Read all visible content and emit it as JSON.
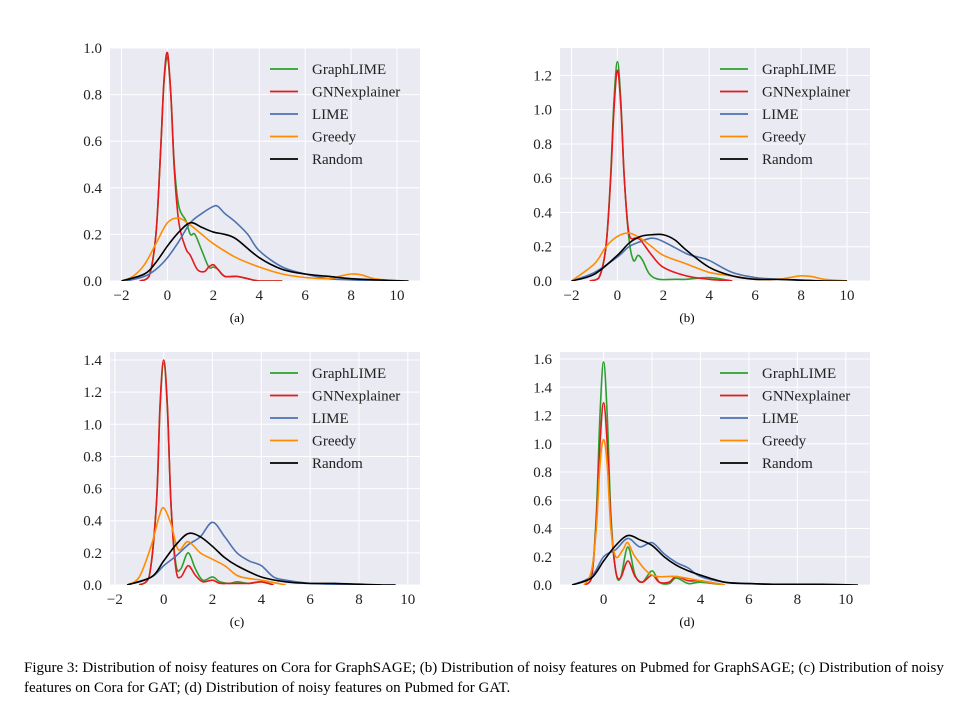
{
  "figure": {
    "caption": "Figure 3: Distribution of noisy features on Cora for GraphSAGE; (b) Distribution of noisy features on Pubmed for GraphSAGE; (c) Distribution of noisy features on Cora for GAT; (d) Distribution of noisy features on Pubmed for GAT."
  },
  "colors": {
    "GraphLIME": "#2ca02c",
    "GNNexplainer": "#e41a1c",
    "LIME": "#4c72b0",
    "Greedy": "#ff8c00",
    "Random": "#000000",
    "background": "#eaeaf2",
    "grid": "#ffffff"
  },
  "chart_data": [
    {
      "type": "line",
      "label": "(a)",
      "xlim": [
        -2.5,
        11
      ],
      "ylim": [
        0,
        1.0
      ],
      "xticks": [
        -2,
        0,
        2,
        4,
        6,
        8,
        10
      ],
      "yticks": [
        0.0,
        0.2,
        0.4,
        0.6,
        0.8,
        1.0
      ],
      "legend": "top-right",
      "series": [
        {
          "name": "GraphLIME",
          "x": [
            -1.2,
            -0.8,
            -0.5,
            -0.3,
            -0.15,
            0,
            0.15,
            0.3,
            0.5,
            0.8,
            1,
            1.2,
            1.5,
            1.8,
            2,
            2.2,
            2.5,
            3,
            3.5,
            4,
            5
          ],
          "y": [
            0,
            0.02,
            0.2,
            0.55,
            0.85,
            0.96,
            0.8,
            0.5,
            0.32,
            0.26,
            0.2,
            0.2,
            0.13,
            0.06,
            0.06,
            0.05,
            0.02,
            0.02,
            0.01,
            0.0,
            0
          ]
        },
        {
          "name": "GNNexplainer",
          "x": [
            -1.2,
            -0.8,
            -0.5,
            -0.3,
            -0.15,
            0,
            0.15,
            0.3,
            0.5,
            0.8,
            1,
            1.3,
            1.6,
            1.8,
            2,
            2.2,
            2.5,
            3,
            3.5,
            4,
            5
          ],
          "y": [
            0,
            0.02,
            0.2,
            0.55,
            0.86,
            0.98,
            0.8,
            0.48,
            0.25,
            0.14,
            0.11,
            0.05,
            0.04,
            0.06,
            0.07,
            0.05,
            0.02,
            0.02,
            0.01,
            0.0,
            0
          ]
        },
        {
          "name": "LIME",
          "x": [
            -1.8,
            -1,
            -0.5,
            0,
            0.5,
            1,
            1.5,
            2,
            2.2,
            2.5,
            3,
            3.5,
            4,
            5,
            6,
            7,
            8,
            9,
            10
          ],
          "y": [
            0,
            0.02,
            0.05,
            0.1,
            0.17,
            0.25,
            0.29,
            0.32,
            0.32,
            0.29,
            0.25,
            0.2,
            0.13,
            0.06,
            0.03,
            0.01,
            0.005,
            0,
            0
          ]
        },
        {
          "name": "Greedy",
          "x": [
            -2,
            -1.5,
            -1,
            -0.5,
            0,
            0.5,
            1,
            1.5,
            2,
            3,
            4,
            5,
            6,
            7,
            7.5,
            8,
            8.5,
            9,
            10
          ],
          "y": [
            0,
            0.02,
            0.07,
            0.16,
            0.25,
            0.27,
            0.24,
            0.2,
            0.16,
            0.1,
            0.06,
            0.03,
            0.015,
            0.01,
            0.02,
            0.03,
            0.025,
            0.01,
            0
          ]
        },
        {
          "name": "Random",
          "x": [
            -2,
            -1,
            -0.5,
            0,
            0.5,
            1,
            1.5,
            2,
            2.5,
            3,
            4,
            5,
            6,
            7,
            8,
            9,
            10.5
          ],
          "y": [
            0,
            0.03,
            0.08,
            0.15,
            0.21,
            0.25,
            0.23,
            0.21,
            0.2,
            0.18,
            0.1,
            0.05,
            0.03,
            0.02,
            0.01,
            0.005,
            0
          ]
        }
      ]
    },
    {
      "type": "line",
      "label": "(b)",
      "xlim": [
        -2.5,
        11
      ],
      "ylim": [
        0,
        1.36
      ],
      "xticks": [
        -2,
        0,
        2,
        4,
        6,
        8,
        10
      ],
      "yticks": [
        0.0,
        0.2,
        0.4,
        0.6,
        0.8,
        1.0,
        1.2
      ],
      "legend": "top-right",
      "series": [
        {
          "name": "GraphLIME",
          "x": [
            -1.2,
            -0.8,
            -0.5,
            -0.3,
            -0.15,
            0,
            0.15,
            0.3,
            0.5,
            0.7,
            0.9,
            1.1,
            1.4,
            1.8,
            2.5,
            3,
            4,
            5
          ],
          "y": [
            0,
            0.02,
            0.2,
            0.6,
            1.05,
            1.28,
            1.05,
            0.6,
            0.25,
            0.12,
            0.15,
            0.12,
            0.04,
            0.01,
            0.01,
            0.01,
            0.02,
            0
          ]
        },
        {
          "name": "GNNexplainer",
          "x": [
            -1.2,
            -0.8,
            -0.5,
            -0.3,
            -0.15,
            0,
            0.15,
            0.3,
            0.5,
            0.8,
            1,
            1.5,
            2,
            3,
            4,
            5
          ],
          "y": [
            0,
            0.02,
            0.2,
            0.58,
            1.0,
            1.23,
            1.02,
            0.6,
            0.28,
            0.25,
            0.24,
            0.15,
            0.08,
            0.03,
            0.01,
            0
          ]
        },
        {
          "name": "LIME",
          "x": [
            -2,
            -1,
            0,
            0.5,
            1,
            1.5,
            2,
            3,
            3.5,
            4,
            5,
            6,
            7,
            8,
            9,
            10
          ],
          "y": [
            0,
            0.05,
            0.14,
            0.2,
            0.23,
            0.25,
            0.23,
            0.16,
            0.14,
            0.12,
            0.05,
            0.02,
            0.01,
            0.005,
            0,
            0
          ]
        },
        {
          "name": "Greedy",
          "x": [
            -2,
            -1,
            -0.5,
            0,
            0.5,
            1,
            1.5,
            2,
            3,
            4,
            5,
            6,
            7,
            7.5,
            8,
            8.5,
            9,
            10
          ],
          "y": [
            0,
            0.1,
            0.2,
            0.26,
            0.28,
            0.25,
            0.2,
            0.15,
            0.1,
            0.05,
            0.03,
            0.01,
            0.01,
            0.02,
            0.03,
            0.025,
            0.01,
            0
          ]
        },
        {
          "name": "Random",
          "x": [
            -2,
            -1,
            0,
            0.5,
            1,
            1.5,
            2,
            2.5,
            3,
            4,
            5,
            6,
            7,
            8,
            9,
            10
          ],
          "y": [
            0,
            0.04,
            0.15,
            0.22,
            0.26,
            0.27,
            0.27,
            0.24,
            0.18,
            0.08,
            0.03,
            0.01,
            0.01,
            0.005,
            0,
            0
          ]
        }
      ]
    },
    {
      "type": "line",
      "label": "(c)",
      "xlim": [
        -2.2,
        10.5
      ],
      "ylim": [
        0,
        1.45
      ],
      "xticks": [
        -2,
        0,
        2,
        4,
        6,
        8,
        10
      ],
      "yticks": [
        0.0,
        0.2,
        0.4,
        0.6,
        0.8,
        1.0,
        1.2,
        1.4
      ],
      "legend": "top-right",
      "series": [
        {
          "name": "GraphLIME",
          "x": [
            -1,
            -0.6,
            -0.3,
            -0.15,
            0,
            0.15,
            0.3,
            0.5,
            0.7,
            1,
            1.3,
            1.6,
            2,
            2.3,
            2.7,
            3,
            3.5,
            4,
            4.5
          ],
          "y": [
            0,
            0.05,
            0.5,
            1.1,
            1.38,
            1.1,
            0.5,
            0.13,
            0.1,
            0.2,
            0.1,
            0.03,
            0.05,
            0.02,
            0.01,
            0.02,
            0.01,
            0.02,
            0
          ]
        },
        {
          "name": "GNNexplainer",
          "x": [
            -1,
            -0.6,
            -0.3,
            -0.15,
            0,
            0.15,
            0.3,
            0.5,
            0.7,
            1,
            1.3,
            1.6,
            2,
            2.3,
            2.7,
            3,
            3.5,
            4,
            4.5
          ],
          "y": [
            0,
            0.05,
            0.5,
            1.12,
            1.4,
            1.12,
            0.5,
            0.1,
            0.05,
            0.12,
            0.06,
            0.02,
            0.03,
            0.01,
            0.01,
            0.01,
            0.01,
            0.02,
            0
          ]
        },
        {
          "name": "LIME",
          "x": [
            -1.5,
            -0.5,
            0,
            0.5,
            1,
            1.5,
            2,
            2.5,
            3,
            3.5,
            4,
            4.5,
            5,
            6,
            7,
            8,
            9.5
          ],
          "y": [
            0,
            0.05,
            0.12,
            0.18,
            0.25,
            0.3,
            0.39,
            0.3,
            0.2,
            0.15,
            0.12,
            0.05,
            0.03,
            0.01,
            0.005,
            0,
            0
          ]
        },
        {
          "name": "Greedy",
          "x": [
            -1.5,
            -1,
            -0.5,
            -0.2,
            0,
            0.3,
            0.6,
            1,
            1.5,
            2,
            2.5,
            3,
            3.5,
            4,
            5
          ],
          "y": [
            0,
            0.05,
            0.25,
            0.42,
            0.48,
            0.38,
            0.22,
            0.27,
            0.2,
            0.16,
            0.12,
            0.06,
            0.04,
            0.03,
            0
          ]
        },
        {
          "name": "Random",
          "x": [
            -1.5,
            -0.5,
            0,
            0.5,
            1,
            1.5,
            2,
            2.5,
            3,
            4,
            5,
            6,
            7,
            8,
            9,
            9.5
          ],
          "y": [
            0,
            0.05,
            0.15,
            0.25,
            0.32,
            0.3,
            0.24,
            0.17,
            0.12,
            0.05,
            0.02,
            0.01,
            0.01,
            0.005,
            0,
            0
          ]
        }
      ]
    },
    {
      "type": "line",
      "label": "(d)",
      "xlim": [
        -1.8,
        11
      ],
      "ylim": [
        0,
        1.65
      ],
      "xticks": [
        0,
        2,
        4,
        6,
        8,
        10
      ],
      "yticks": [
        0.0,
        0.2,
        0.4,
        0.6,
        0.8,
        1.0,
        1.2,
        1.4,
        1.6
      ],
      "legend": "top-right",
      "series": [
        {
          "name": "GraphLIME",
          "x": [
            -0.8,
            -0.5,
            -0.3,
            -0.15,
            0,
            0.15,
            0.3,
            0.5,
            0.7,
            1,
            1.3,
            1.6,
            2,
            2.3,
            2.7,
            3,
            3.5,
            4,
            5
          ],
          "y": [
            0,
            0.05,
            0.5,
            1.2,
            1.58,
            1.2,
            0.5,
            0.1,
            0.05,
            0.27,
            0.07,
            0.02,
            0.1,
            0.02,
            0.01,
            0.05,
            0.01,
            0.02,
            0
          ]
        },
        {
          "name": "GNNexplainer",
          "x": [
            -0.8,
            -0.5,
            -0.3,
            -0.15,
            0,
            0.15,
            0.3,
            0.5,
            0.7,
            1,
            1.3,
            1.6,
            2,
            2.3,
            2.7,
            3,
            3.5,
            4,
            5
          ],
          "y": [
            0,
            0.05,
            0.45,
            1.0,
            1.29,
            1.0,
            0.45,
            0.1,
            0.05,
            0.17,
            0.06,
            0.02,
            0.07,
            0.02,
            0.02,
            0.06,
            0.03,
            0.03,
            0
          ]
        },
        {
          "name": "LIME",
          "x": [
            -1.3,
            -0.5,
            0,
            0.5,
            1,
            1.5,
            2,
            2.5,
            3,
            3.5,
            4,
            5,
            6,
            7,
            8,
            9,
            10
          ],
          "y": [
            0,
            0.06,
            0.2,
            0.25,
            0.33,
            0.27,
            0.3,
            0.22,
            0.16,
            0.12,
            0.06,
            0.02,
            0.01,
            0.005,
            0,
            0,
            0
          ]
        },
        {
          "name": "Greedy",
          "x": [
            -0.8,
            -0.5,
            -0.3,
            -0.15,
            0,
            0.15,
            0.3,
            0.5,
            0.8,
            1,
            1.3,
            2,
            3,
            4,
            5
          ],
          "y": [
            0,
            0.1,
            0.4,
            0.85,
            1.03,
            0.85,
            0.4,
            0.2,
            0.25,
            0.3,
            0.2,
            0.07,
            0.06,
            0.03,
            0
          ]
        },
        {
          "name": "Random",
          "x": [
            -1.3,
            -0.5,
            0,
            0.5,
            1,
            1.5,
            2,
            2.5,
            3,
            3.5,
            4,
            5,
            6,
            7,
            8,
            9,
            10.5
          ],
          "y": [
            0,
            0.05,
            0.17,
            0.28,
            0.35,
            0.32,
            0.28,
            0.2,
            0.14,
            0.1,
            0.07,
            0.02,
            0.01,
            0.005,
            0.005,
            0.005,
            0
          ]
        }
      ]
    }
  ]
}
